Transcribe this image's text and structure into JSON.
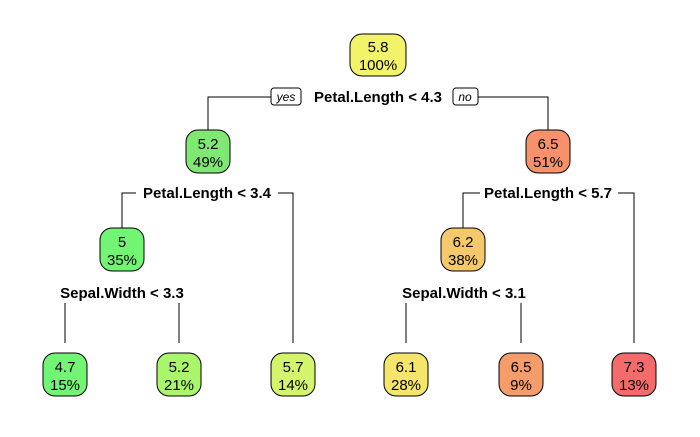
{
  "tree": {
    "root": {
      "value": "5.8",
      "percent": "100%",
      "color": "#f2f26b"
    },
    "root_split": "Petal.Length < 4.3",
    "yes_label": "yes",
    "no_label": "no",
    "left": {
      "value": "5.2",
      "percent": "49%",
      "color": "#7fe872",
      "split": "Petal.Length < 3.4",
      "left": {
        "value": "5",
        "percent": "35%",
        "color": "#72f572",
        "split": "Sepal.Width < 3.3",
        "left": {
          "value": "4.7",
          "percent": "15%",
          "color": "#72f575"
        },
        "right": {
          "value": "5.2",
          "percent": "21%",
          "color": "#a9f56b"
        }
      },
      "right": {
        "value": "5.7",
        "percent": "14%",
        "color": "#d4f56b"
      }
    },
    "right": {
      "value": "6.5",
      "percent": "51%",
      "color": "#f5916b",
      "split": "Petal.Length < 5.7",
      "left": {
        "value": "6.2",
        "percent": "38%",
        "color": "#f5c96b",
        "split": "Sepal.Width < 3.1",
        "left": {
          "value": "6.1",
          "percent": "28%",
          "color": "#f5e56b"
        },
        "right": {
          "value": "6.5",
          "percent": "9%",
          "color": "#f59c6b"
        }
      },
      "right": {
        "value": "7.3",
        "percent": "13%",
        "color": "#f56b6b"
      }
    }
  }
}
